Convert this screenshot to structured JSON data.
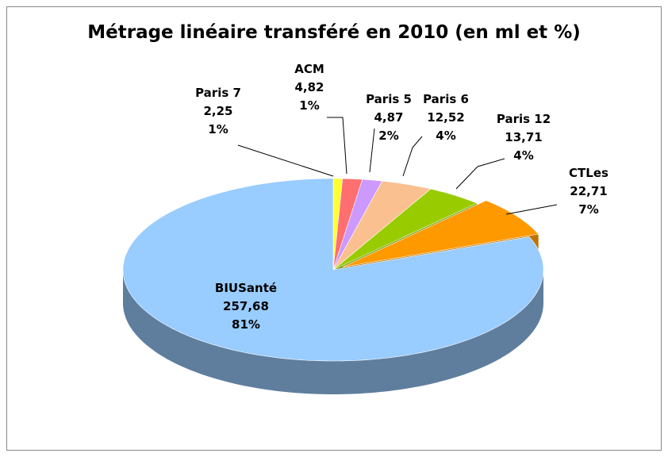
{
  "chart_data": {
    "type": "pie3d",
    "title": "Métrage linéaire transféré en 2010 (en ml et %)",
    "categories": [
      "Paris 7",
      "ACM",
      "Paris 5",
      "Paris 6",
      "Paris 12",
      "CTLes",
      "BIUSanté"
    ],
    "values": [
      2.25,
      4.82,
      4.87,
      12.52,
      13.71,
      22.71,
      257.68
    ],
    "value_labels": [
      "2,25",
      "4,82",
      "4,87",
      "12,52",
      "13,71",
      "22,71",
      "257,68"
    ],
    "percent_labels": [
      "1%",
      "1%",
      "2%",
      "4%",
      "4%",
      "7%",
      "81%"
    ],
    "colors": [
      "#ffff33",
      "#ff6f6f",
      "#cc99ff",
      "#fac090",
      "#99cc00",
      "#ff9900",
      "#99ccff"
    ]
  }
}
